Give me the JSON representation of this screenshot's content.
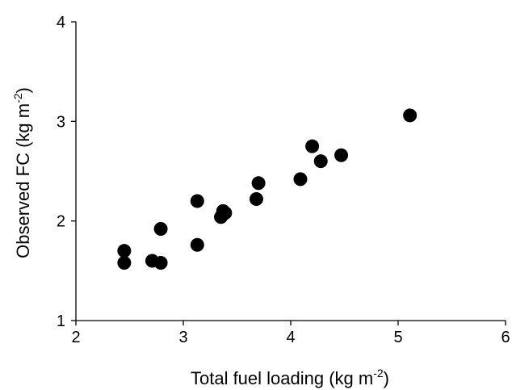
{
  "chart_data": {
    "type": "scatter",
    "title": "",
    "xlabel": {
      "text": "Total fuel loading (kg m",
      "sup": "-2",
      "suffix": ")"
    },
    "ylabel": {
      "text": "Observed FC (kg m",
      "sup": "-2",
      "suffix": ")"
    },
    "xlim": [
      2,
      6
    ],
    "ylim": [
      1,
      4
    ],
    "xticks": [
      2,
      3,
      4,
      5,
      6
    ],
    "yticks": [
      1,
      2,
      3,
      4
    ],
    "grid": false,
    "legend": "none",
    "marker_color": "#000000",
    "points": [
      {
        "x": 2.45,
        "y": 1.7
      },
      {
        "x": 2.45,
        "y": 1.58
      },
      {
        "x": 2.71,
        "y": 1.6
      },
      {
        "x": 2.79,
        "y": 1.58
      },
      {
        "x": 2.79,
        "y": 1.92
      },
      {
        "x": 3.13,
        "y": 2.2
      },
      {
        "x": 3.13,
        "y": 1.76
      },
      {
        "x": 3.35,
        "y": 2.04
      },
      {
        "x": 3.37,
        "y": 2.1
      },
      {
        "x": 3.39,
        "y": 2.08
      },
      {
        "x": 3.68,
        "y": 2.22
      },
      {
        "x": 3.7,
        "y": 2.38
      },
      {
        "x": 4.09,
        "y": 2.42
      },
      {
        "x": 4.2,
        "y": 2.75
      },
      {
        "x": 4.28,
        "y": 2.6
      },
      {
        "x": 4.47,
        "y": 2.66
      },
      {
        "x": 5.11,
        "y": 3.06
      }
    ]
  }
}
